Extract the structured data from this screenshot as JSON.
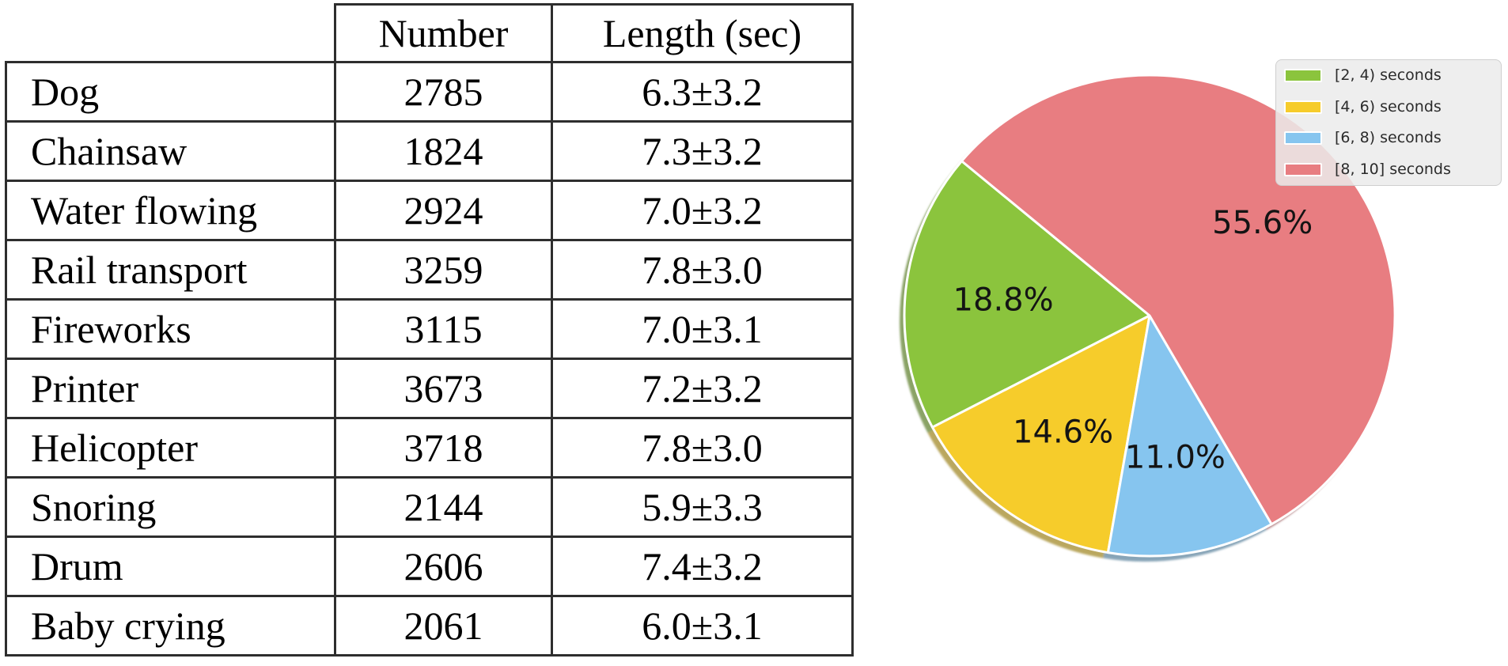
{
  "chart_data": [
    {
      "type": "table",
      "headers": [
        "",
        "Number",
        "Length (sec)"
      ],
      "rows": [
        [
          "Dog",
          "2785",
          "6.3±3.2"
        ],
        [
          "Chainsaw",
          "1824",
          "7.3±3.2"
        ],
        [
          "Water flowing",
          "2924",
          "7.0±3.2"
        ],
        [
          "Rail transport",
          "3259",
          "7.8±3.0"
        ],
        [
          "Fireworks",
          "3115",
          "7.0±3.1"
        ],
        [
          "Printer",
          "3673",
          "7.2±3.2"
        ],
        [
          "Helicopter",
          "3718",
          "7.8±3.0"
        ],
        [
          "Snoring",
          "2144",
          "5.9±3.3"
        ],
        [
          "Drum",
          "2606",
          "7.4±3.2"
        ],
        [
          "Baby crying",
          "2061",
          "6.0±3.1"
        ]
      ]
    },
    {
      "type": "pie",
      "title": "",
      "labels": [
        "[2, 4) seconds",
        "[4, 6) seconds",
        "[6, 8) seconds",
        "[8, 10] seconds"
      ],
      "values": [
        18.8,
        14.6,
        11.0,
        55.6
      ],
      "percent_labels": [
        "18.8%",
        "14.6%",
        "11.0%",
        "55.6%"
      ],
      "colors": [
        "#8bc43d",
        "#f6cc2b",
        "#86c5ef",
        "#e87d81"
      ],
      "start_angle": 140,
      "direction": "counterclockwise",
      "legend_position": "upper right",
      "shadow": true,
      "label_distance": 0.6
    }
  ]
}
